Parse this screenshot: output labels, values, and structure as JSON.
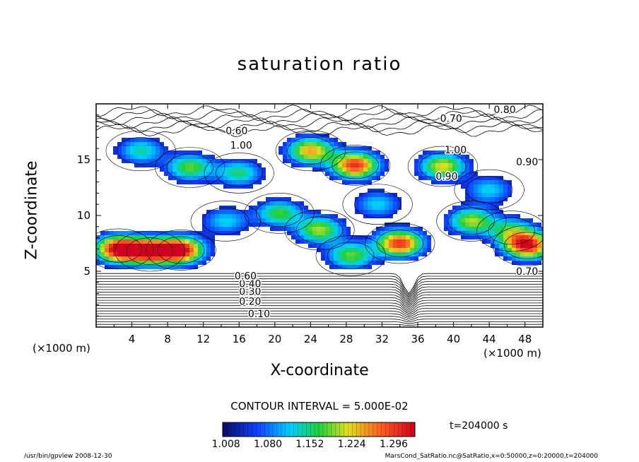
{
  "chart_data": {
    "type": "heatmap",
    "title": "saturation ratio",
    "xlabel": "X-coordinate",
    "ylabel": "Z-coordinate",
    "x_unit": "(×1000 m)",
    "y_unit": "(×1000 m)",
    "xlim": [
      0,
      50
    ],
    "ylim": [
      0,
      20
    ],
    "x_ticks": [
      "4",
      "8",
      "12",
      "16",
      "20",
      "24",
      "28",
      "32",
      "36",
      "40",
      "44",
      "48"
    ],
    "y_ticks": [
      "5",
      "10",
      "15"
    ],
    "contour_interval": "CONTOUR INTERVAL = 5.000E-02",
    "colorbar": {
      "ticks": [
        "1.008",
        "1.080",
        "1.152",
        "1.224",
        "1.296"
      ],
      "min": 1.0,
      "max": 1.33
    },
    "contour_labels": [
      {
        "text": "0.10",
        "x": 17,
        "z": 1.2
      },
      {
        "text": "0.20",
        "x": 16,
        "z": 2.3
      },
      {
        "text": "0.30",
        "x": 16,
        "z": 3.2
      },
      {
        "text": "0.40",
        "x": 16,
        "z": 3.9
      },
      {
        "text": "0.60",
        "x": 15.5,
        "z": 4.6
      },
      {
        "text": "0.70",
        "x": 47,
        "z": 5.0
      },
      {
        "text": "0.60",
        "x": 14.5,
        "z": 17.6
      },
      {
        "text": "0.70",
        "x": 38.5,
        "z": 18.7
      },
      {
        "text": "0.80",
        "x": 44.5,
        "z": 19.5
      },
      {
        "text": "1.00",
        "x": 15,
        "z": 16.3
      },
      {
        "text": "1.00",
        "x": 39,
        "z": 15.9
      },
      {
        "text": "0.90",
        "x": 38,
        "z": 13.5
      },
      {
        "text": "0.90",
        "x": 47,
        "z": 14.8
      }
    ],
    "highs": [
      {
        "x": 29,
        "z": 14.5,
        "v": 1.3
      },
      {
        "x": 2.5,
        "z": 7.0,
        "v": 1.33
      },
      {
        "x": 9.5,
        "z": 6.9,
        "v": 1.32
      },
      {
        "x": 6.0,
        "z": 6.8,
        "v": 1.3
      },
      {
        "x": 48.3,
        "z": 7.3,
        "v": 1.31
      },
      {
        "x": 34.0,
        "z": 7.5,
        "v": 1.3
      },
      {
        "x": 24.0,
        "z": 15.8,
        "v": 1.24
      },
      {
        "x": 38.8,
        "z": 14.4,
        "v": 1.22
      },
      {
        "x": 42.0,
        "z": 9.5,
        "v": 1.2
      },
      {
        "x": 25.0,
        "z": 8.7,
        "v": 1.2
      },
      {
        "x": 20.5,
        "z": 10.2,
        "v": 1.17
      },
      {
        "x": 10.5,
        "z": 14.3,
        "v": 1.18
      },
      {
        "x": 16.0,
        "z": 13.8,
        "v": 1.15
      },
      {
        "x": 31.5,
        "z": 11.0,
        "v": 1.12
      },
      {
        "x": 14.5,
        "z": 9.5,
        "v": 1.12
      },
      {
        "x": 5.0,
        "z": 15.8,
        "v": 1.14
      },
      {
        "x": 44.0,
        "z": 12.3,
        "v": 1.12
      },
      {
        "x": 46.5,
        "z": 8.6,
        "v": 1.15
      },
      {
        "x": 28.5,
        "z": 6.4,
        "v": 1.18
      }
    ]
  },
  "footer": {
    "left": "/usr/bin/gpview  2008-12-30",
    "right": "MarsCond_SatRatio.nc@SatRatio,x=0:50000,z=0:20000,t=204000"
  },
  "time_label": "t=204000 s"
}
